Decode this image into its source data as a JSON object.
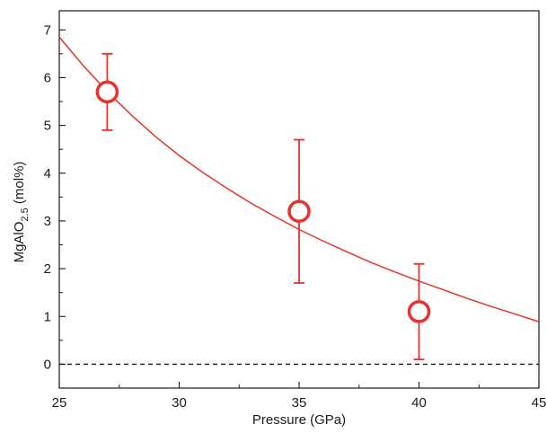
{
  "chart_data": {
    "type": "scatter",
    "xlabel": "Pressure (GPa)",
    "ylabel": {
      "base": "MgAlO",
      "subscript": "2.5",
      "suffix": " (mol%)"
    },
    "xlim": [
      25,
      45
    ],
    "ylim": [
      -0.5,
      7.4
    ],
    "x_ticks": [
      25,
      30,
      35,
      40,
      45
    ],
    "y_ticks": [
      0,
      1,
      2,
      3,
      4,
      5,
      6,
      7
    ],
    "grid": false,
    "legend": "none",
    "color": "#e8322b",
    "series": [
      {
        "points": [
          {
            "x": 27,
            "y": 5.7,
            "err_low": 4.9,
            "err_high": 6.5
          },
          {
            "x": 35,
            "y": 3.2,
            "err_low": 1.7,
            "err_high": 4.7
          },
          {
            "x": 40,
            "y": 1.1,
            "err_low": 0.1,
            "err_high": 2.1
          }
        ]
      }
    ],
    "fit_curve": {
      "x": [
        25,
        26,
        27,
        28,
        29,
        30,
        31,
        32,
        33,
        34,
        35,
        36,
        37,
        38,
        39,
        40,
        41,
        42,
        43,
        44,
        45
      ],
      "y": [
        6.85,
        6.25,
        5.71,
        5.22,
        4.77,
        4.37,
        4.01,
        3.68,
        3.37,
        3.09,
        2.82,
        2.58,
        2.35,
        2.13,
        1.93,
        1.74,
        1.56,
        1.38,
        1.21,
        1.05,
        0.89
      ]
    },
    "reference_line": {
      "y": 0,
      "style": "dashed"
    }
  }
}
